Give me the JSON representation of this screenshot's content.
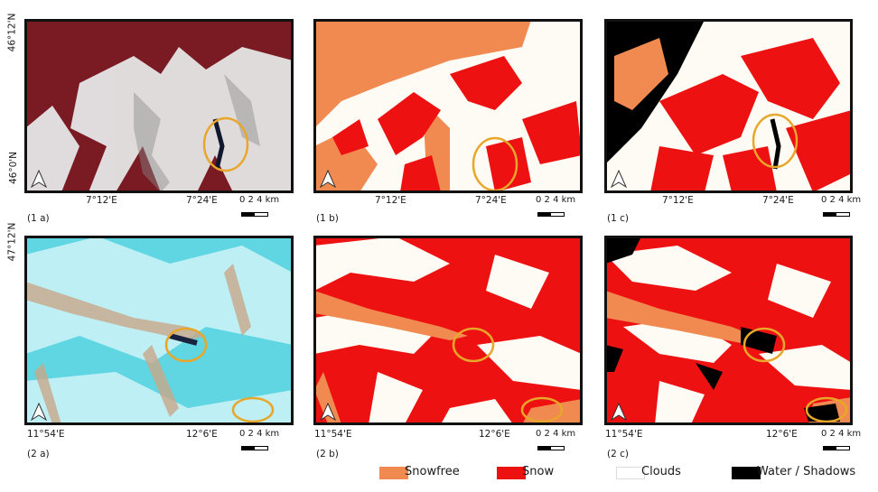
{
  "lat_labels": {
    "r1_top": "46°12'N",
    "r1_bot": "46°0'N",
    "r2_top": "47°12'N"
  },
  "lon_labels": {
    "r1_a": "7°12'E",
    "r1_b": "7°24'E",
    "r2_a": "11°54'E",
    "r2_b": "12°6'E"
  },
  "scale_text": "0  2  4 km",
  "panels": [
    {
      "id": "1a",
      "label": "(1 a)"
    },
    {
      "id": "1b",
      "label": "(1 b)"
    },
    {
      "id": "1c",
      "label": "(1 c)"
    },
    {
      "id": "2a",
      "label": "(2 a)"
    },
    {
      "id": "2b",
      "label": "(2 b)"
    },
    {
      "id": "2c",
      "label": "(2 c)"
    }
  ],
  "legend": [
    {
      "label": "Snowfree",
      "color": "#f08a50"
    },
    {
      "label": "Snow",
      "color": "#ee1111"
    },
    {
      "label": "Clouds",
      "color": "#ffffff"
    },
    {
      "label": "Water / Shadows",
      "color": "#000000"
    }
  ],
  "colors": {
    "snowfree": "#f08a50",
    "snow": "#ee1111",
    "clouds": "#fdfbf3",
    "water": "#000000",
    "highlight": "#e8a62a",
    "falsecolor_bg": "#7a1a22",
    "truecolor_bg": "#5fd6e2"
  }
}
